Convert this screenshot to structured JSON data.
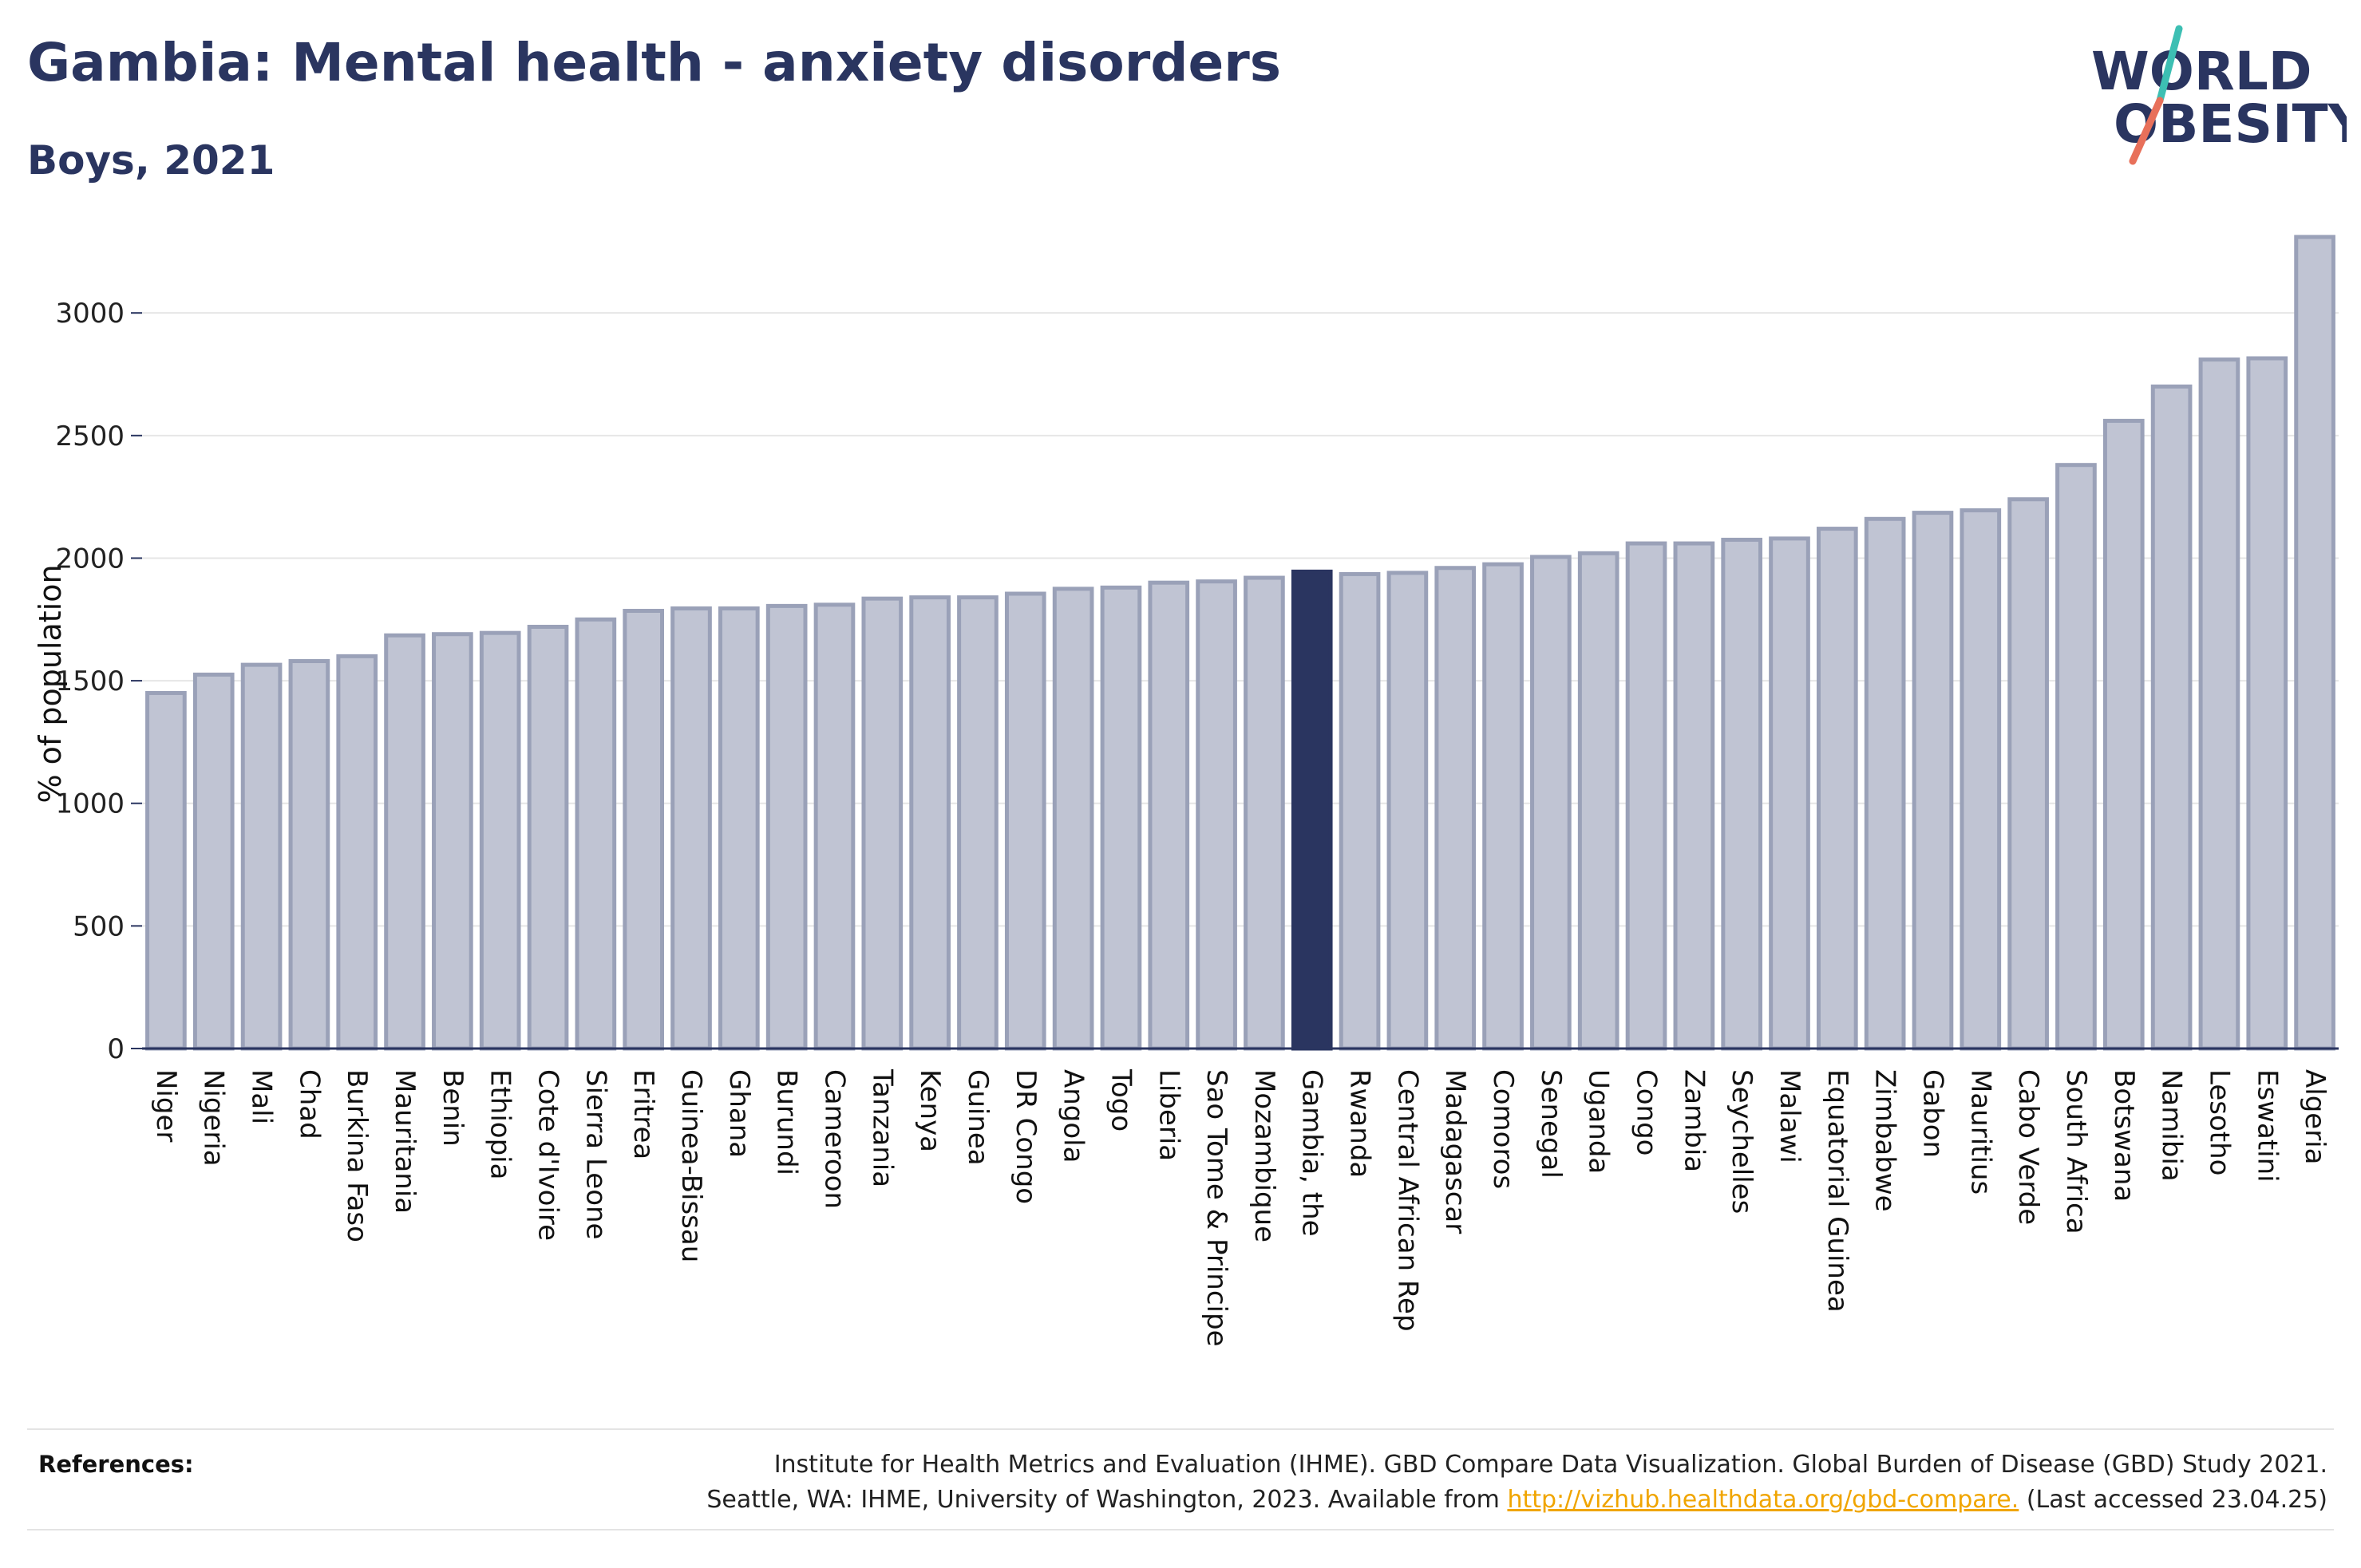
{
  "header": {
    "title": "Gambia: Mental health - anxiety disorders",
    "subtitle": "Boys, 2021"
  },
  "logo": {
    "line1": "WORLD",
    "line2": "OBESITY",
    "text_color": "#2a3560",
    "slash_colors": [
      "#3dbfb3",
      "#e8705a"
    ]
  },
  "colors": {
    "bar_default": "#c0c4d3",
    "bar_border": "#9aa1b8",
    "bar_highlight": "#2a3560",
    "grid": "#e6e6e6",
    "axis": "#2a3560"
  },
  "chart_data": {
    "type": "bar",
    "ylabel": "% of population",
    "ylim": [
      0,
      3300
    ],
    "yticks": [
      0,
      500,
      1000,
      1500,
      2000,
      2500,
      3000
    ],
    "grid": true,
    "highlight": "Gambia, the",
    "categories": [
      "Niger",
      "Nigeria",
      "Mali",
      "Chad",
      "Burkina Faso",
      "Mauritania",
      "Benin",
      "Ethiopia",
      "Cote d'Ivoire",
      "Sierra Leone",
      "Eritrea",
      "Guinea-Bissau",
      "Ghana",
      "Burundi",
      "Cameroon",
      "Tanzania",
      "Kenya",
      "Guinea",
      "DR Congo",
      "Angola",
      "Togo",
      "Liberia",
      "Sao Tome & Principe",
      "Mozambique",
      "Gambia, the",
      "Rwanda",
      "Central African Rep",
      "Madagascar",
      "Comoros",
      "Senegal",
      "Uganda",
      "Congo",
      "Zambia",
      "Seychelles",
      "Malawi",
      "Equatorial Guinea",
      "Zimbabwe",
      "Gabon",
      "Mauritius",
      "Cabo Verde",
      "South Africa",
      "Botswana",
      "Namibia",
      "Lesotho",
      "Eswatini",
      "Algeria"
    ],
    "values": [
      1450,
      1525,
      1565,
      1580,
      1600,
      1685,
      1690,
      1695,
      1720,
      1750,
      1785,
      1795,
      1795,
      1805,
      1810,
      1835,
      1840,
      1840,
      1855,
      1875,
      1880,
      1900,
      1905,
      1920,
      1945,
      1935,
      1940,
      1960,
      1975,
      2005,
      2020,
      2060,
      2060,
      2075,
      2080,
      2120,
      2160,
      2185,
      2195,
      2240,
      2380,
      2560,
      2700,
      2810,
      2815,
      3310
    ]
  },
  "footer": {
    "references_label": "References:",
    "ref_line1": "Institute for Health Metrics and Evaluation (IHME). GBD Compare Data Visualization. Global Burden of Disease (GBD) Study 2021.",
    "ref_line2_pre": "Seattle, WA: IHME, University of Washington, 2023. Available from ",
    "ref_link": "http://vizhub.healthdata.org/gbd-compare.",
    "ref_line2_post": " (Last accessed 23.04.25)"
  }
}
